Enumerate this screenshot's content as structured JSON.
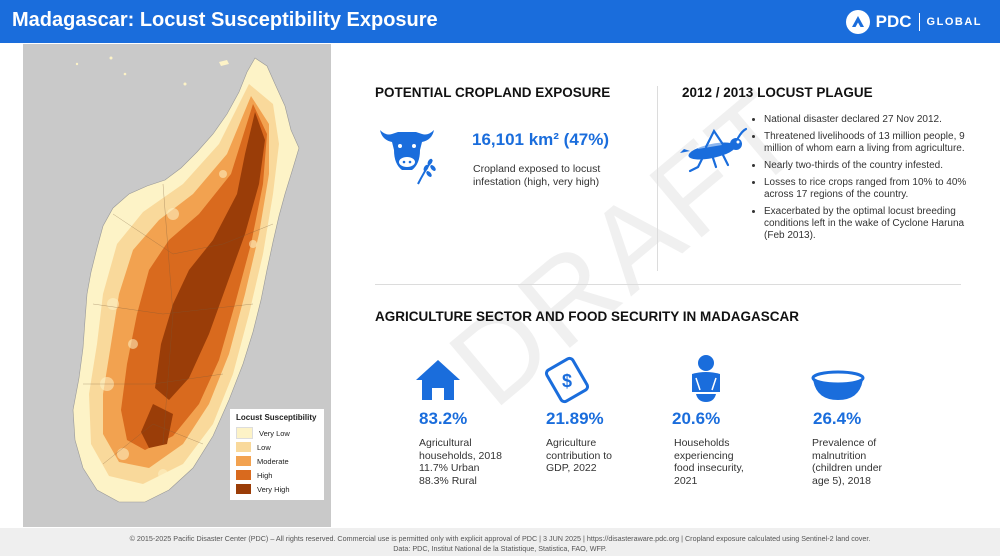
{
  "header": {
    "title": "Madagascar: Locust Susceptibility Exposure",
    "brand": "PDC",
    "brand_sub": "GLOBAL"
  },
  "legend": {
    "title": "Locust Susceptibility",
    "items": [
      {
        "label": "Very Low",
        "color": "#fdf3c7"
      },
      {
        "label": "Low",
        "color": "#f9d99b"
      },
      {
        "label": "Moderate",
        "color": "#f2a250"
      },
      {
        "label": "High",
        "color": "#d96a1e"
      },
      {
        "label": "Very High",
        "color": "#9a3d08"
      }
    ]
  },
  "cropland": {
    "title": "POTENTIAL CROPLAND EXPOSURE",
    "value": "16,101 km² (47%)",
    "desc_line1": "Cropland exposed to locust",
    "desc_line2": "infestation (high, very high)"
  },
  "plague": {
    "title": "2012 / 2013 LOCUST PLAGUE",
    "bullets": [
      "National disaster declared 27 Nov 2012.",
      "Threatened livelihoods of 13 million people, 9 million of whom earn a living from agriculture.",
      "Nearly two-thirds of the country infested.",
      "Losses to rice crops ranged from 10% to 40% across 17 regions of the country.",
      "Exacerbated by the optimal locust breeding conditions left in the wake of Cyclone Haruna (Feb 2013)."
    ]
  },
  "agri": {
    "title": "AGRICULTURE SECTOR AND FOOD SECURITY IN MADAGASCAR",
    "stats": [
      {
        "value": "83.2%",
        "lines": [
          "Agricultural",
          "households, 2018",
          "11.7% Urban",
          "88.3% Rural"
        ]
      },
      {
        "value": "21.89%",
        "lines": [
          "Agriculture",
          "contribution to",
          "GDP, 2022"
        ]
      },
      {
        "value": "20.6%",
        "lines": [
          "Households",
          "experiencing",
          "food insecurity,",
          "2021"
        ]
      },
      {
        "value": "26.4%",
        "lines": [
          "Prevalence of",
          "malnutrition",
          "(children under",
          "age 5), 2018"
        ]
      }
    ]
  },
  "watermark": "DRAFT",
  "footer": {
    "line1": "© 2015-2025 Pacific Disaster Center (PDC) – All rights reserved. Commercial use is permitted only with explicit approval of PDC  |  3 JUN 2025  |  https://disasteraware.pdc.org  |  Cropland exposure calculated using Sentinel-2 land cover.",
    "line2": "Data: PDC, Institut National de la Statistique, Statistica, FAO, WFP."
  },
  "colors": {
    "accent": "#1a6ddc",
    "map_bg": "#c9c9c9"
  }
}
